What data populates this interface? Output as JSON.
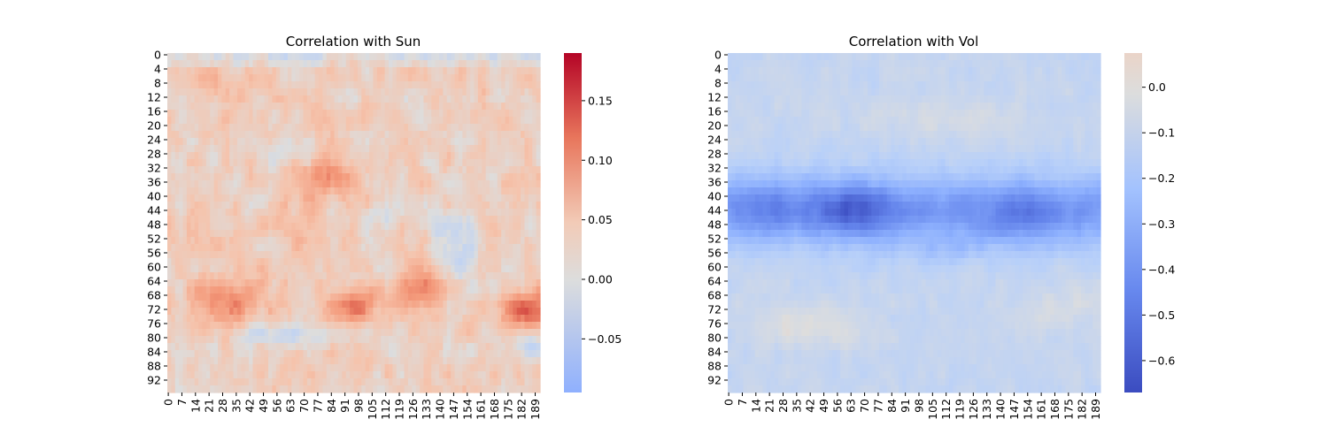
{
  "chart_data": [
    {
      "type": "heatmap",
      "title": "Correlation with Sun",
      "xlabel": "",
      "ylabel": "",
      "rows": 96,
      "cols": 192,
      "x_ticks": [
        0,
        7,
        14,
        21,
        28,
        35,
        42,
        49,
        56,
        63,
        70,
        77,
        84,
        91,
        98,
        105,
        112,
        119,
        126,
        133,
        140,
        147,
        154,
        161,
        168,
        175,
        182,
        189
      ],
      "y_ticks": [
        0,
        4,
        8,
        12,
        16,
        20,
        24,
        28,
        32,
        36,
        40,
        44,
        48,
        52,
        56,
        60,
        64,
        68,
        72,
        76,
        80,
        84,
        88,
        92
      ],
      "colormap": "coolwarm",
      "vmin": -0.095,
      "vmax": 0.19,
      "colorbar_ticks": [
        {
          "value": -0.05,
          "label": "−0.05"
        },
        {
          "value": 0.0,
          "label": "0.00"
        },
        {
          "value": 0.05,
          "label": "0.05"
        },
        {
          "value": 0.1,
          "label": "0.10"
        },
        {
          "value": 0.15,
          "label": "0.15"
        }
      ],
      "features": [
        {
          "row": 72,
          "col": 183,
          "value": 0.19,
          "note": "strong positive core"
        },
        {
          "row": 70,
          "col": 30,
          "value": 0.14,
          "note": "positive"
        },
        {
          "row": 71,
          "col": 96,
          "value": 0.15,
          "note": "positive"
        },
        {
          "row": 66,
          "col": 130,
          "value": 0.12,
          "note": "positive"
        },
        {
          "row": 34,
          "col": 80,
          "value": 0.08,
          "note": "positive band"
        },
        {
          "row": 54,
          "col": 150,
          "value": -0.04,
          "note": "negative patch"
        },
        {
          "row": 82,
          "col": 185,
          "value": -0.06,
          "note": "negative patch"
        },
        {
          "row": 80,
          "col": 70,
          "value": -0.03,
          "note": "negative patch"
        }
      ]
    },
    {
      "type": "heatmap",
      "title": "Correlation with Vol",
      "xlabel": "",
      "ylabel": "",
      "rows": 96,
      "cols": 192,
      "x_ticks": [
        0,
        7,
        14,
        21,
        28,
        35,
        42,
        49,
        56,
        63,
        70,
        77,
        84,
        91,
        98,
        105,
        112,
        119,
        126,
        133,
        140,
        147,
        154,
        161,
        168,
        175,
        182,
        189
      ],
      "y_ticks": [
        0,
        4,
        8,
        12,
        16,
        20,
        24,
        28,
        32,
        36,
        40,
        44,
        48,
        52,
        56,
        60,
        64,
        68,
        72,
        76,
        80,
        84,
        88,
        92
      ],
      "colormap": "coolwarm",
      "vmin": -0.67,
      "vmax": 0.075,
      "colorbar_ticks": [
        {
          "value": 0.0,
          "label": "0.0"
        },
        {
          "value": -0.1,
          "label": "−0.1"
        },
        {
          "value": -0.2,
          "label": "−0.2"
        },
        {
          "value": -0.3,
          "label": "−0.3"
        },
        {
          "value": -0.4,
          "label": "−0.4"
        },
        {
          "value": -0.5,
          "label": "−0.5"
        },
        {
          "value": -0.6,
          "label": "−0.6"
        }
      ],
      "features": [
        {
          "row": 44,
          "col": 70,
          "value": -0.62,
          "note": "strongest negative band"
        },
        {
          "row": 46,
          "col": 150,
          "value": -0.5,
          "note": "negative band"
        },
        {
          "row": 42,
          "col": 20,
          "value": -0.45,
          "note": "negative band"
        },
        {
          "row": 76,
          "col": 40,
          "value": 0.03,
          "note": "near zero"
        },
        {
          "row": 2,
          "col": 96,
          "value": -0.12,
          "note": "weak negative"
        }
      ]
    }
  ]
}
